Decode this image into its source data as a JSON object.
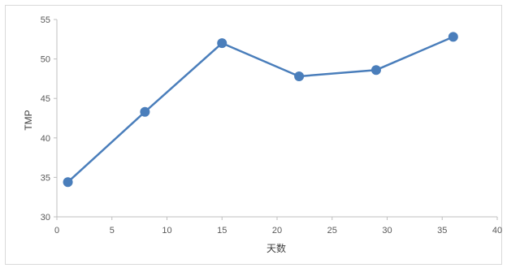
{
  "chart_data": {
    "type": "line",
    "title": "",
    "xlabel": "天数",
    "ylabel": "TMP",
    "xlim": [
      0,
      40
    ],
    "ylim": [
      30,
      55
    ],
    "xticks": [
      0,
      5,
      10,
      15,
      20,
      25,
      30,
      35,
      40
    ],
    "yticks": [
      30,
      35,
      40,
      45,
      50,
      55
    ],
    "grid": false,
    "legend": "none",
    "series_color": "#4a7ebb",
    "series": [
      {
        "x": [
          1,
          8,
          15,
          22,
          29,
          36
        ],
        "values": [
          34.4,
          43.3,
          52.0,
          47.8,
          48.6,
          52.8
        ]
      }
    ]
  }
}
